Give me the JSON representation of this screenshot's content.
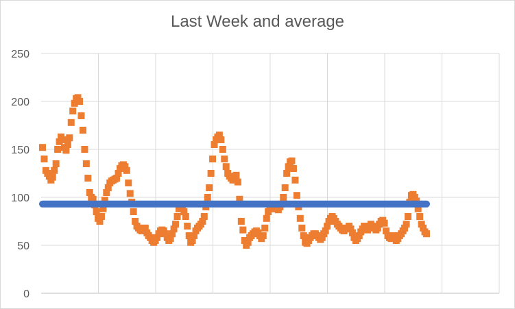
{
  "chart_data": {
    "type": "scatter",
    "title": "Last Week and average",
    "xlabel": "",
    "ylabel": "",
    "ylim": [
      0,
      250
    ],
    "yticks": [
      0,
      50,
      100,
      150,
      200,
      250
    ],
    "grid": true,
    "legend": "none",
    "x_gridline_count": 8,
    "series": [
      {
        "color": "#ED7D31",
        "marker": "square",
        "values": [
          152,
          140,
          128,
          125,
          122,
          118,
          121,
          128,
          135,
          150,
          158,
          163,
          160,
          152,
          149,
          155,
          162,
          178,
          190,
          198,
          203,
          204,
          200,
          185,
          170,
          150,
          135,
          120,
          105,
          100,
          98,
          92,
          85,
          78,
          75,
          80,
          88,
          97,
          105,
          110,
          115,
          117,
          118,
          119,
          120,
          125,
          130,
          133,
          134,
          132,
          128,
          115,
          104,
          95,
          85,
          75,
          70,
          68,
          66,
          65,
          66,
          68,
          63,
          60,
          58,
          55,
          53,
          55,
          58,
          62,
          65,
          66,
          65,
          62,
          58,
          55,
          57,
          62,
          67,
          72,
          80,
          88,
          92,
          90,
          85,
          80,
          70,
          60,
          53,
          55,
          60,
          65,
          68,
          70,
          72,
          75,
          80,
          90,
          100,
          110,
          125,
          140,
          155,
          160,
          163,
          165,
          160,
          150,
          140,
          132,
          125,
          122,
          120,
          118,
          121,
          123,
          116,
          98,
          75,
          66,
          55,
          50,
          53,
          58,
          60,
          62,
          64,
          65,
          63,
          60,
          57,
          60,
          68,
          78,
          85,
          88,
          90,
          92,
          90,
          88,
          87,
          90,
          93,
          100,
          110,
          125,
          132,
          137,
          138,
          130,
          118,
          102,
          90,
          78,
          68,
          60,
          53,
          52,
          55,
          58,
          60,
          62,
          62,
          60,
          58,
          56,
          58,
          62,
          65,
          70,
          75,
          78,
          80,
          78,
          75,
          72,
          70,
          68,
          66,
          65,
          67,
          68,
          70,
          67,
          63,
          58,
          55,
          57,
          60,
          64,
          67,
          70,
          68,
          66,
          70,
          72,
          70,
          68,
          66,
          68,
          72,
          75,
          76,
          73,
          65,
          60,
          58,
          57,
          58,
          60,
          55,
          57,
          60,
          62,
          65,
          68,
          72,
          80,
          95,
          102,
          103,
          100,
          96,
          88,
          80,
          72,
          68,
          64,
          62
        ],
        "x_domain": [
          0,
          244
        ]
      },
      {
        "color": "#4472C4",
        "type": "line",
        "values": [
          93,
          93
        ],
        "x_domain": [
          0,
          244
        ]
      }
    ]
  }
}
